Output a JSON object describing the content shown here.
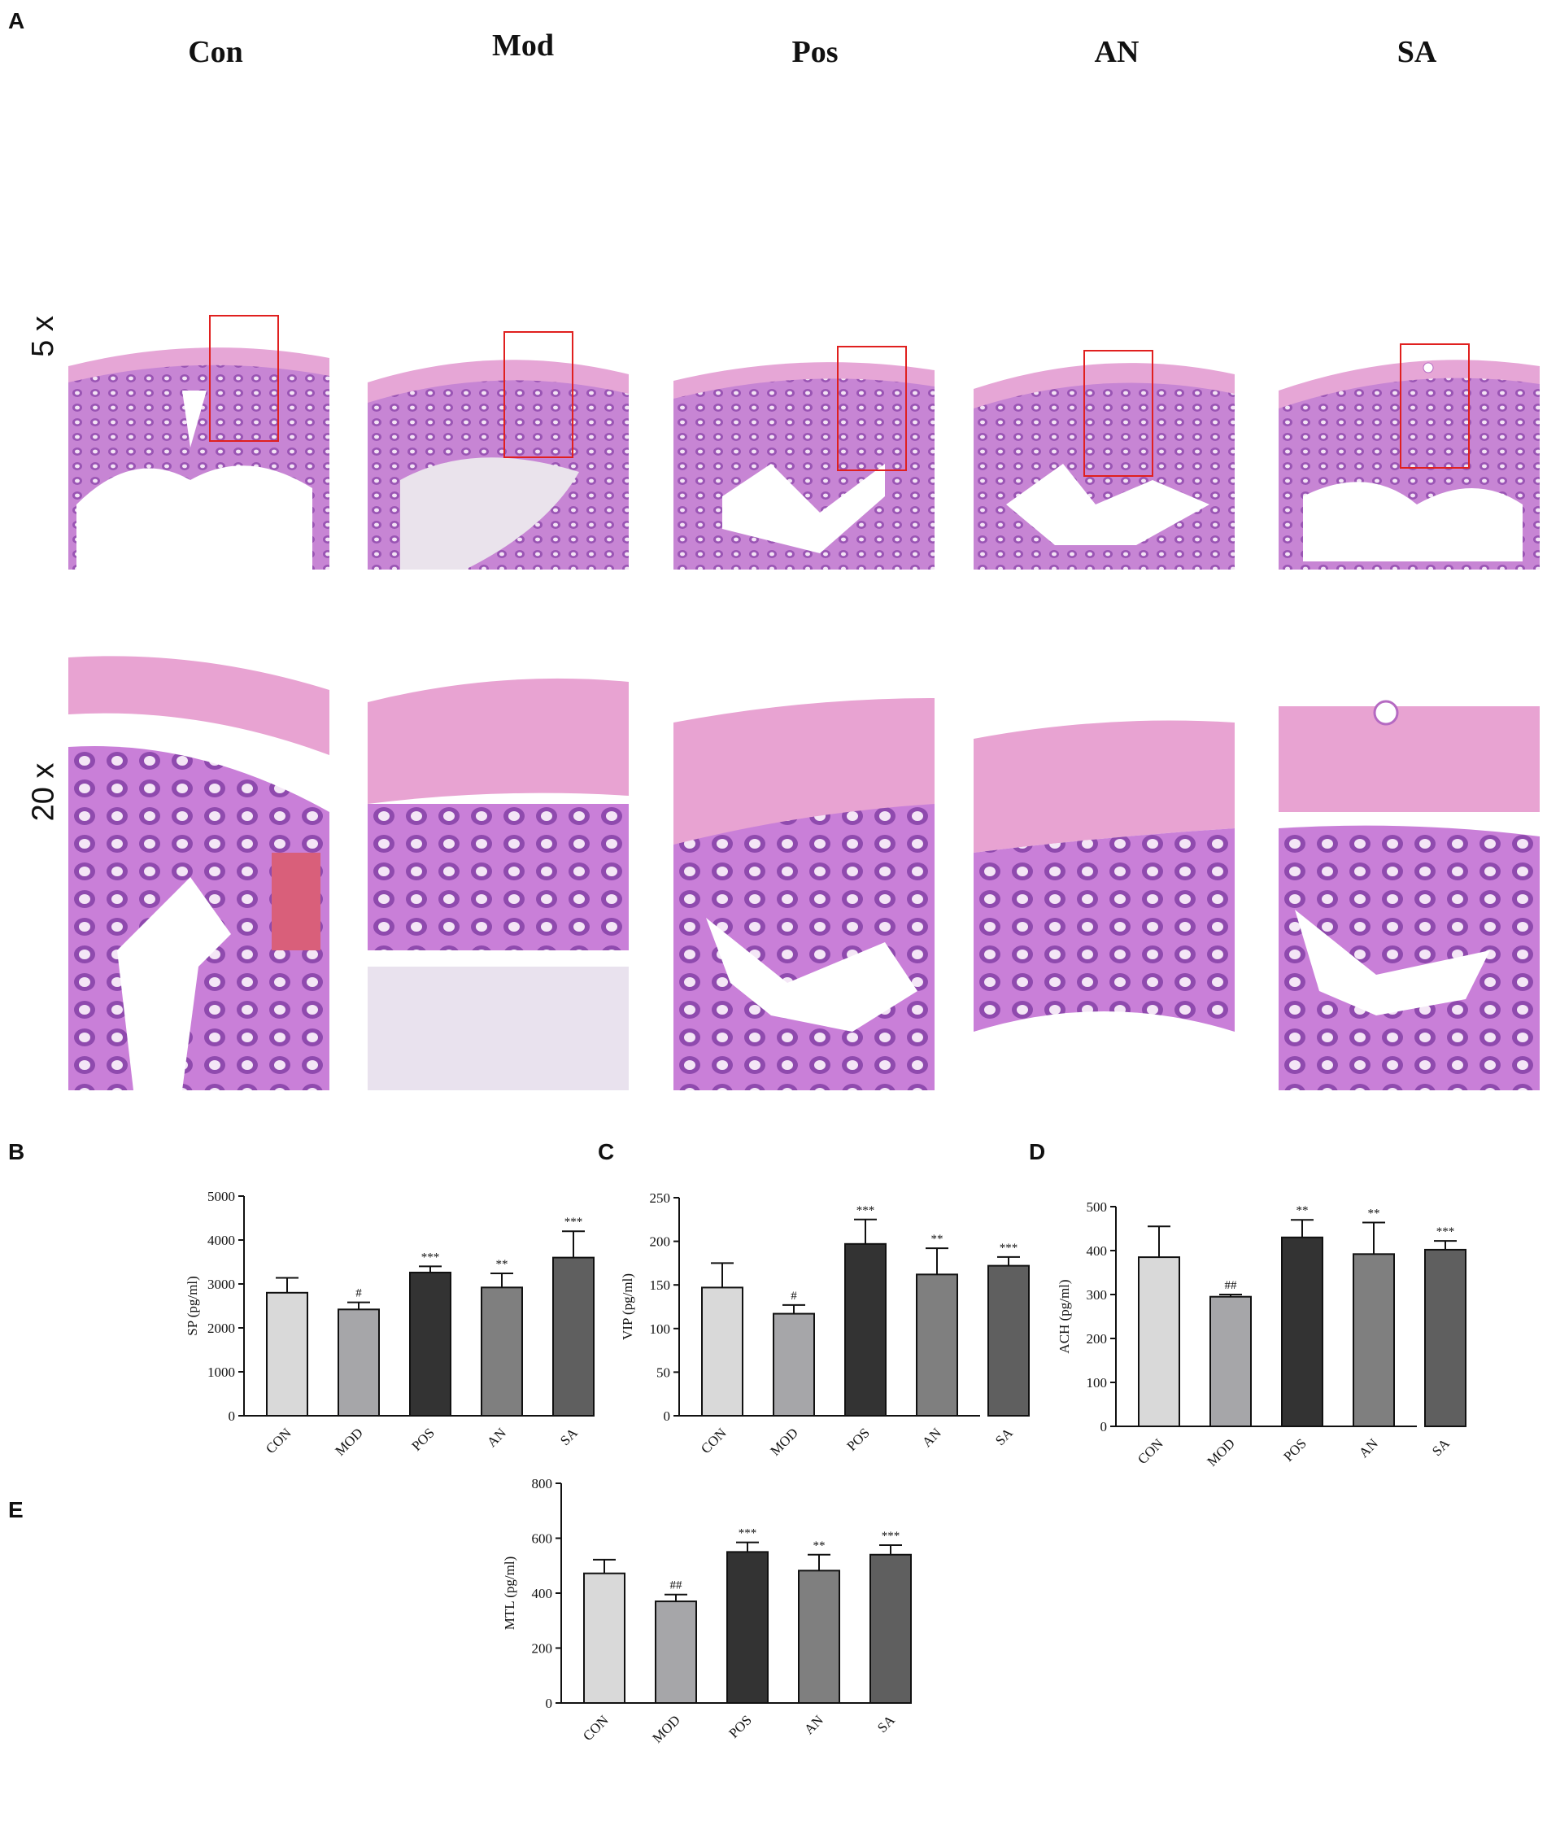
{
  "panel_a": {
    "label": "A",
    "columns": [
      "Con",
      "Mod",
      "Pos",
      "AN",
      "SA"
    ],
    "rows": [
      "5 x",
      "20 x"
    ]
  },
  "chart_data": [
    {
      "panel": "B",
      "type": "bar",
      "categories": [
        "CON",
        "MOD",
        "POS",
        "AN",
        "SA"
      ],
      "values": [
        2800,
        2420,
        3260,
        2920,
        3600
      ],
      "errors": [
        340,
        160,
        140,
        320,
        600
      ],
      "annotations": [
        "",
        "#",
        "***",
        "**",
        "***"
      ],
      "ylabel": "SP (pg/ml)",
      "ylim": [
        0,
        5000
      ],
      "yticks": [
        0,
        1000,
        2000,
        3000,
        4000,
        5000
      ],
      "colors": [
        "#d9d9d9",
        "#a6a6a9",
        "#333333",
        "#7f7f7f",
        "#5f5f5f"
      ]
    },
    {
      "panel": "C",
      "type": "bar",
      "categories": [
        "CON",
        "MOD",
        "POS",
        "AN",
        "SA"
      ],
      "values": [
        147,
        117,
        197,
        162,
        172
      ],
      "errors": [
        28,
        10,
        28,
        30,
        10
      ],
      "annotations": [
        "",
        "#",
        "***",
        "**",
        "***"
      ],
      "ylabel": "VIP (pg/ml)",
      "ylim": [
        0,
        250
      ],
      "yticks": [
        0,
        50,
        100,
        150,
        200,
        250
      ],
      "colors": [
        "#d9d9d9",
        "#a6a6a9",
        "#333333",
        "#7f7f7f",
        "#5f5f5f"
      ]
    },
    {
      "panel": "D",
      "type": "bar",
      "categories": [
        "CON",
        "MOD",
        "POS",
        "AN",
        "SA"
      ],
      "values": [
        385,
        295,
        430,
        392,
        402
      ],
      "errors": [
        70,
        5,
        40,
        72,
        20
      ],
      "annotations": [
        "",
        "##",
        "**",
        "**",
        "***"
      ],
      "ylabel": "ACH (pg/ml)",
      "ylim": [
        0,
        500
      ],
      "yticks": [
        0,
        100,
        200,
        300,
        400,
        500
      ],
      "colors": [
        "#d9d9d9",
        "#a6a6a9",
        "#333333",
        "#7f7f7f",
        "#5f5f5f"
      ]
    },
    {
      "panel": "E",
      "type": "bar",
      "categories": [
        "CON",
        "MOD",
        "POS",
        "AN",
        "SA"
      ],
      "values": [
        472,
        370,
        550,
        482,
        540
      ],
      "errors": [
        50,
        25,
        35,
        58,
        35
      ],
      "annotations": [
        "",
        "##",
        "***",
        "**",
        "***"
      ],
      "ylabel": "MTL (pg/ml)",
      "ylim": [
        0,
        800
      ],
      "yticks": [
        0,
        200,
        400,
        600,
        800
      ],
      "colors": [
        "#d9d9d9",
        "#a6a6a9",
        "#333333",
        "#7f7f7f",
        "#5f5f5f"
      ]
    }
  ]
}
